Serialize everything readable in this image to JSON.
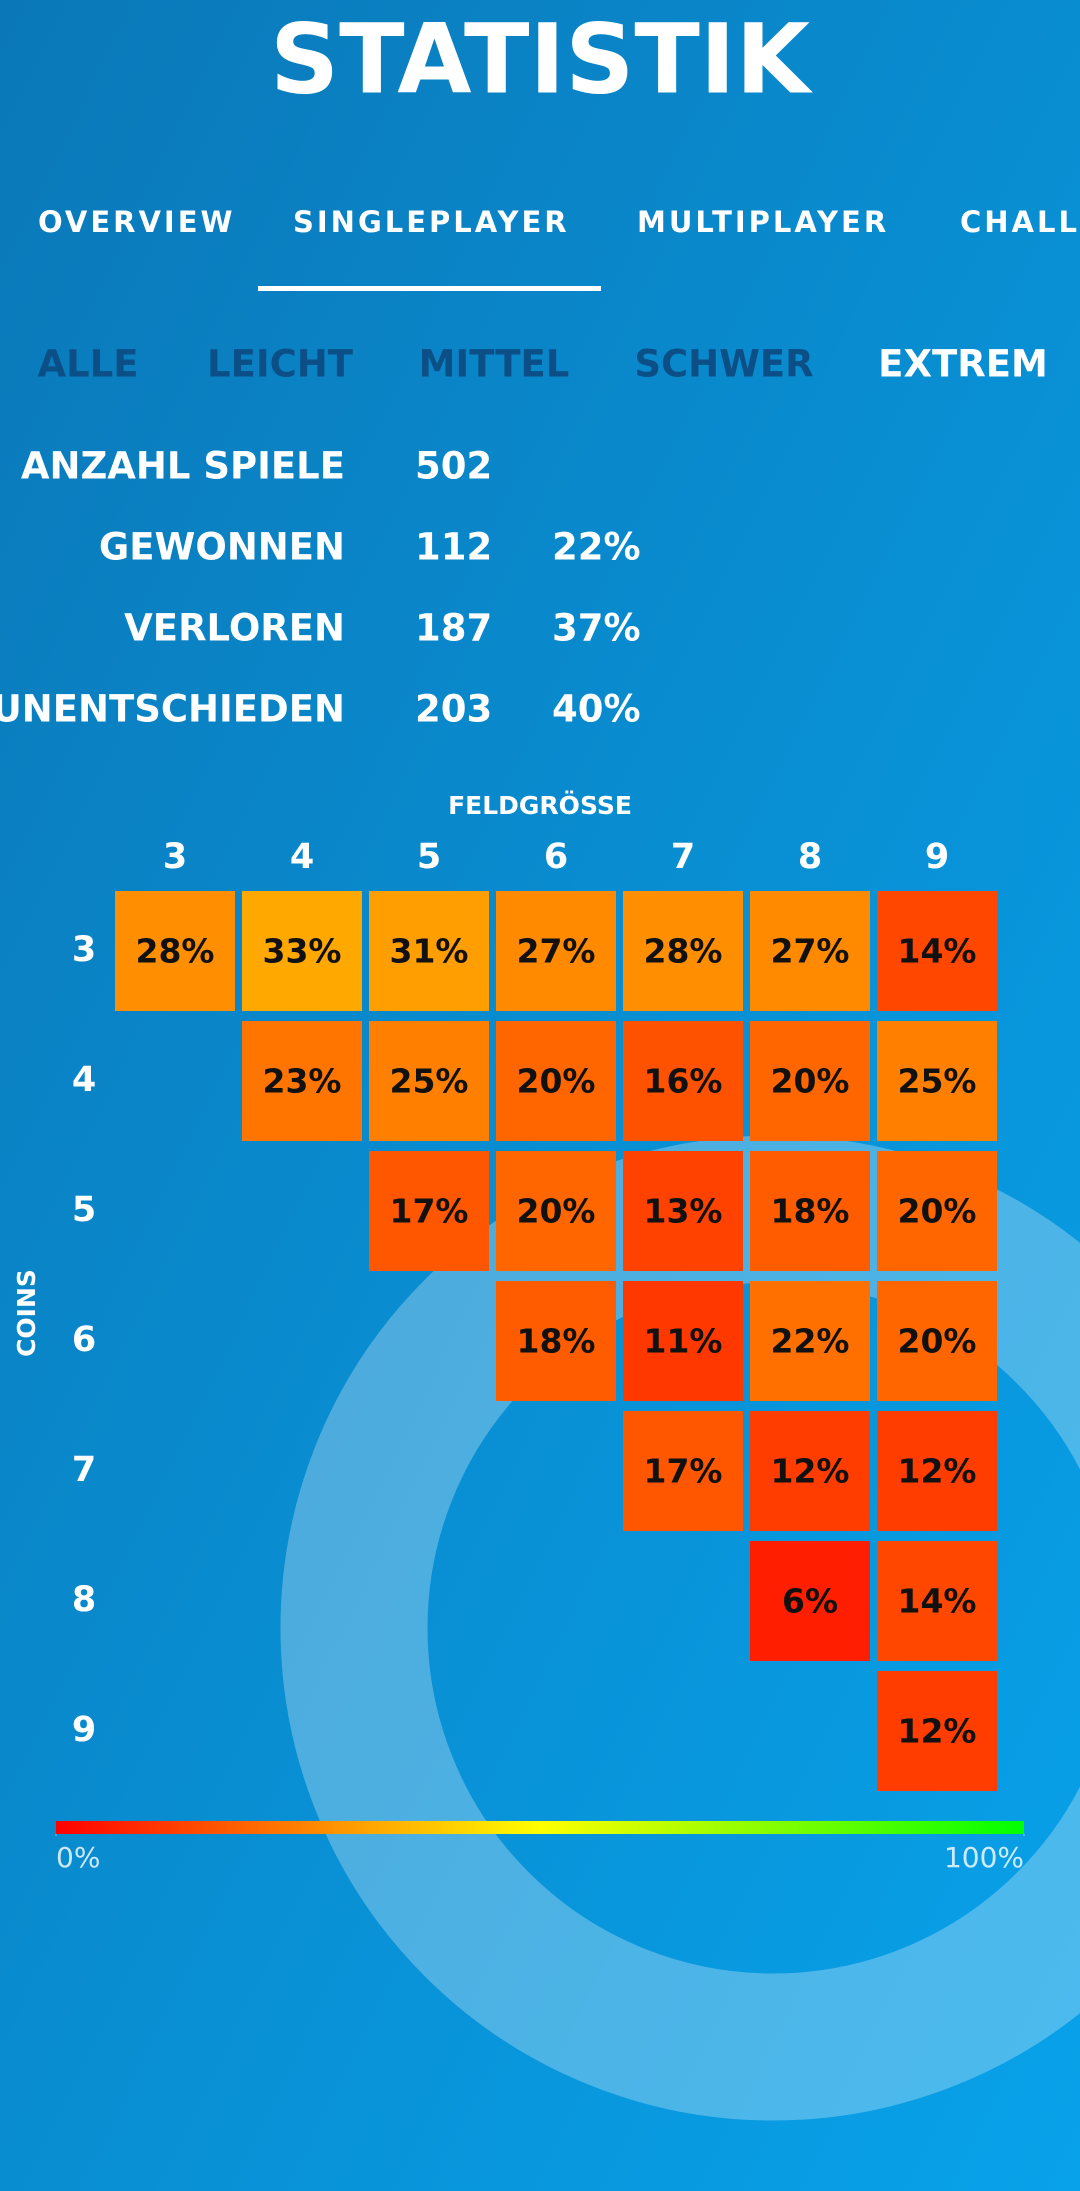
{
  "header": {
    "title": "STATISTIK"
  },
  "tabs": [
    "OVERVIEW",
    "SINGLEPLAYER",
    "MULTIPLAYER",
    "CHALL"
  ],
  "active_tab": 1,
  "difficulties": [
    "ALLE",
    "LEICHT",
    "MITTEL",
    "SCHWER",
    "EXTREM"
  ],
  "active_difficulty": 4,
  "stats": {
    "rows": [
      [
        "ANZAHL SPIELE",
        502
      ],
      [
        "GEWONNEN",
        112,
        "22%"
      ],
      [
        "VERLOREN",
        187,
        "37%"
      ],
      [
        "UNENTSCHIEDEN",
        203,
        "40%"
      ]
    ]
  },
  "chart_data": {
    "type": "heatmap",
    "x_label": "FELDGRÖSSE",
    "y_label": "COINS",
    "x": [
      3,
      4,
      5,
      6,
      7,
      8,
      9
    ],
    "y": [
      3,
      4,
      5,
      6,
      7,
      8,
      9
    ],
    "values": [
      [
        28,
        33,
        31,
        27,
        28,
        27,
        14
      ],
      [
        null,
        23,
        25,
        20,
        16,
        20,
        25
      ],
      [
        null,
        null,
        17,
        20,
        13,
        18,
        20
      ],
      [
        null,
        null,
        null,
        18,
        11,
        22,
        20
      ],
      [
        null,
        null,
        null,
        null,
        17,
        12,
        12
      ],
      [
        null,
        null,
        null,
        null,
        null,
        6,
        14
      ],
      [
        null,
        null,
        null,
        null,
        null,
        null,
        12
      ]
    ],
    "value_labels": [
      [
        "28%",
        "33%",
        "31%",
        "27%",
        "28%",
        "27%",
        "14%"
      ],
      [
        null,
        "23%",
        "25%",
        "20%",
        "16%",
        "20%",
        "25%"
      ],
      [
        null,
        null,
        "17%",
        "20%",
        "13%",
        "18%",
        "20%"
      ],
      [
        null,
        null,
        null,
        "18%",
        "11%",
        "22%",
        "20%"
      ],
      [
        null,
        null,
        null,
        null,
        "17%",
        "12%",
        "12%"
      ],
      [
        null,
        null,
        null,
        null,
        null,
        "6%",
        "14%"
      ],
      [
        null,
        null,
        null,
        null,
        null,
        null,
        "12%"
      ]
    ],
    "colors": [
      "#ff0000",
      "#ffff00",
      "#00ff00"
    ],
    "clim": [
      0,
      100
    ],
    "cticks": [
      {
        "value": 0,
        "label": "0%"
      },
      {
        "value": 100,
        "label": "100%"
      }
    ]
  }
}
